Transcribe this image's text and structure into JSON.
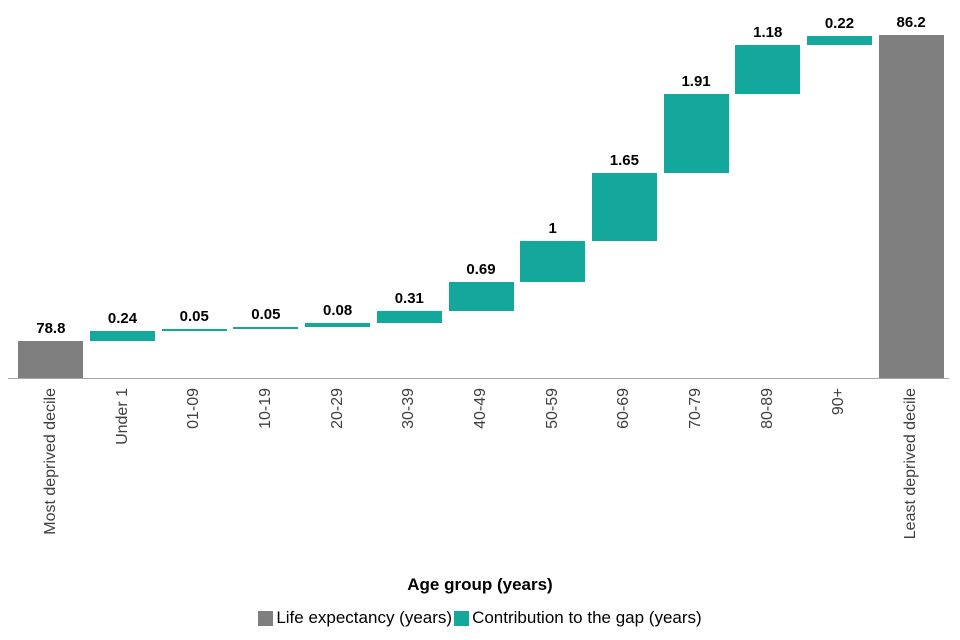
{
  "chart_data": {
    "type": "waterfall",
    "title": "",
    "xlabel": "Age group (years)",
    "ylabel": "",
    "ylim": [
      77.9,
      86.85
    ],
    "grid": false,
    "legend_position": "bottom",
    "colors": {
      "total": "#7f7f7f",
      "contribution": "#14a79b"
    },
    "categories": [
      "Most deprived decile",
      "Under 1",
      "01-09",
      "10-19",
      "20-29",
      "30-39",
      "40-49",
      "50-59",
      "60-69",
      "70-79",
      "80-89",
      "90+",
      "Least deprived decile"
    ],
    "bars": [
      {
        "label": "Most deprived decile",
        "kind": "total",
        "value": 78.8,
        "display": "78.8"
      },
      {
        "label": "Under 1",
        "kind": "contribution",
        "value": 0.24,
        "display": "0.24"
      },
      {
        "label": "01-09",
        "kind": "contribution",
        "value": 0.05,
        "display": "0.05"
      },
      {
        "label": "10-19",
        "kind": "contribution",
        "value": 0.05,
        "display": "0.05"
      },
      {
        "label": "20-29",
        "kind": "contribution",
        "value": 0.08,
        "display": "0.08"
      },
      {
        "label": "30-39",
        "kind": "contribution",
        "value": 0.31,
        "display": "0.31"
      },
      {
        "label": "40-49",
        "kind": "contribution",
        "value": 0.69,
        "display": "0.69"
      },
      {
        "label": "50-59",
        "kind": "contribution",
        "value": 1,
        "display": "1"
      },
      {
        "label": "60-69",
        "kind": "contribution",
        "value": 1.65,
        "display": "1.65"
      },
      {
        "label": "70-79",
        "kind": "contribution",
        "value": 1.91,
        "display": "1.91"
      },
      {
        "label": "80-89",
        "kind": "contribution",
        "value": 1.18,
        "display": "1.18"
      },
      {
        "label": "90+",
        "kind": "contribution",
        "value": 0.22,
        "display": "0.22"
      },
      {
        "label": "Least deprived decile",
        "kind": "total",
        "value": 86.2,
        "display": "86.2"
      }
    ],
    "legend": [
      {
        "label": "Life expectancy (years)",
        "color": "#7f7f7f"
      },
      {
        "label": "Contribution to the gap (years)",
        "color": "#14a79b"
      }
    ]
  }
}
